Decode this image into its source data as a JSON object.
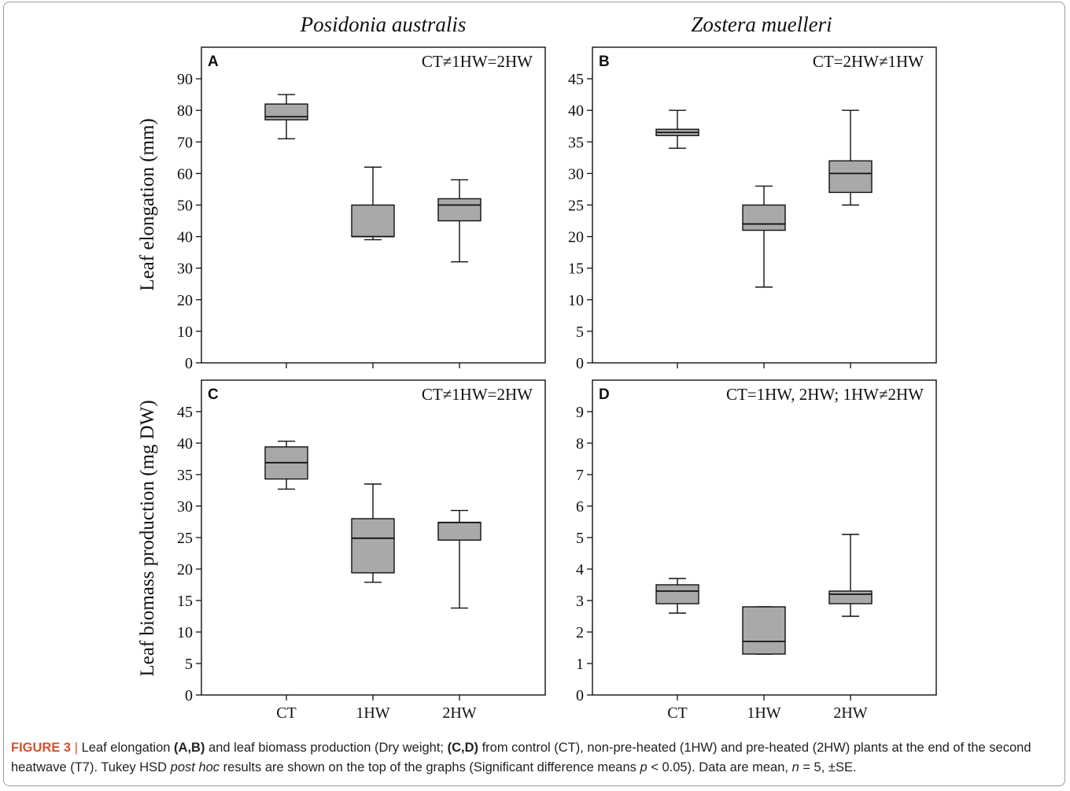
{
  "column_titles": [
    "Posidonia australis",
    "Zostera muelleri"
  ],
  "row_labels": [
    "Leaf elongation (mm)",
    "Leaf biomass production (mg DW)"
  ],
  "caption": {
    "figure_number": "FIGURE 3",
    "separator": "|",
    "segments": [
      {
        "text": " Leaf elongation ",
        "style": "normal"
      },
      {
        "text": "(A,B)",
        "style": "bold"
      },
      {
        "text": " and leaf biomass production (Dry weight; ",
        "style": "normal"
      },
      {
        "text": "(C,D)",
        "style": "bold"
      },
      {
        "text": " from control (CT), non-pre-heated (1HW) and pre-heated (2HW) plants at the end of the second heatwave (T7). Tukey HSD ",
        "style": "normal"
      },
      {
        "text": "post hoc",
        "style": "italic"
      },
      {
        "text": " results are shown on the top of the graphs (Significant difference means ",
        "style": "normal"
      },
      {
        "text": "p",
        "style": "italic"
      },
      {
        "text": " < 0.05). Data are mean, ",
        "style": "normal"
      },
      {
        "text": "n",
        "style": "italic"
      },
      {
        "text": " = 5, ±SE.",
        "style": "normal"
      }
    ]
  },
  "chart_data": [
    {
      "type": "box",
      "panel": "A",
      "annotation": "CT≠1HW=2HW",
      "categories": [
        "CT",
        "1HW",
        "2HW"
      ],
      "ylabel": "Leaf elongation (mm)",
      "ylim": [
        0,
        100
      ],
      "yticks": [
        0,
        10,
        20,
        30,
        40,
        50,
        60,
        70,
        80,
        90
      ],
      "show_x_tick_labels": false,
      "boxes": [
        {
          "category": "CT",
          "whisker_low": 71,
          "q1": 77,
          "median": 78,
          "q3": 82,
          "whisker_high": 85
        },
        {
          "category": "1HW",
          "whisker_low": 39,
          "q1": 40,
          "median": 40,
          "q3": 50,
          "whisker_high": 62
        },
        {
          "category": "2HW",
          "whisker_low": 32,
          "q1": 45,
          "median": 50,
          "q3": 52,
          "whisker_high": 58
        }
      ]
    },
    {
      "type": "box",
      "panel": "B",
      "annotation": "CT=2HW≠1HW",
      "categories": [
        "CT",
        "1HW",
        "2HW"
      ],
      "ylabel": "",
      "ylim": [
        0,
        50
      ],
      "yticks": [
        0,
        5,
        10,
        15,
        20,
        25,
        30,
        35,
        40,
        45
      ],
      "show_x_tick_labels": false,
      "boxes": [
        {
          "category": "CT",
          "whisker_low": 34,
          "q1": 36,
          "median": 36.5,
          "q3": 37,
          "whisker_high": 40
        },
        {
          "category": "1HW",
          "whisker_low": 12,
          "q1": 21,
          "median": 22,
          "q3": 25,
          "whisker_high": 28
        },
        {
          "category": "2HW",
          "whisker_low": 25,
          "q1": 27,
          "median": 30,
          "q3": 32,
          "whisker_high": 40
        }
      ]
    },
    {
      "type": "box",
      "panel": "C",
      "annotation": "CT≠1HW=2HW",
      "categories": [
        "CT",
        "1HW",
        "2HW"
      ],
      "ylabel": "Leaf biomass production (mg DW)",
      "ylim": [
        0,
        50
      ],
      "yticks": [
        0,
        5,
        10,
        15,
        20,
        25,
        30,
        35,
        40,
        45
      ],
      "show_x_tick_labels": true,
      "boxes": [
        {
          "category": "CT",
          "whisker_low": 32.7,
          "q1": 34.3,
          "median": 36.9,
          "q3": 39.4,
          "whisker_high": 40.3
        },
        {
          "category": "1HW",
          "whisker_low": 17.9,
          "q1": 19.4,
          "median": 24.9,
          "q3": 28,
          "whisker_high": 33.5
        },
        {
          "category": "2HW",
          "whisker_low": 13.8,
          "q1": 24.6,
          "median": 27.4,
          "q3": 27.4,
          "whisker_high": 29.3
        }
      ]
    },
    {
      "type": "box",
      "panel": "D",
      "annotation": "CT=1HW, 2HW; 1HW≠2HW",
      "categories": [
        "CT",
        "1HW",
        "2HW"
      ],
      "ylabel": "",
      "ylim": [
        0,
        10
      ],
      "yticks": [
        0,
        1,
        2,
        3,
        4,
        5,
        6,
        7,
        8,
        9
      ],
      "show_x_tick_labels": true,
      "boxes": [
        {
          "category": "CT",
          "whisker_low": 2.6,
          "q1": 2.9,
          "median": 3.3,
          "q3": 3.5,
          "whisker_high": 3.7
        },
        {
          "category": "1HW",
          "whisker_low": 1.3,
          "q1": 1.3,
          "median": 1.7,
          "q3": 2.8,
          "whisker_high": 2.8
        },
        {
          "category": "2HW",
          "whisker_low": 2.5,
          "q1": 2.9,
          "median": 3.2,
          "q3": 3.3,
          "whisker_high": 5.1
        }
      ]
    }
  ]
}
